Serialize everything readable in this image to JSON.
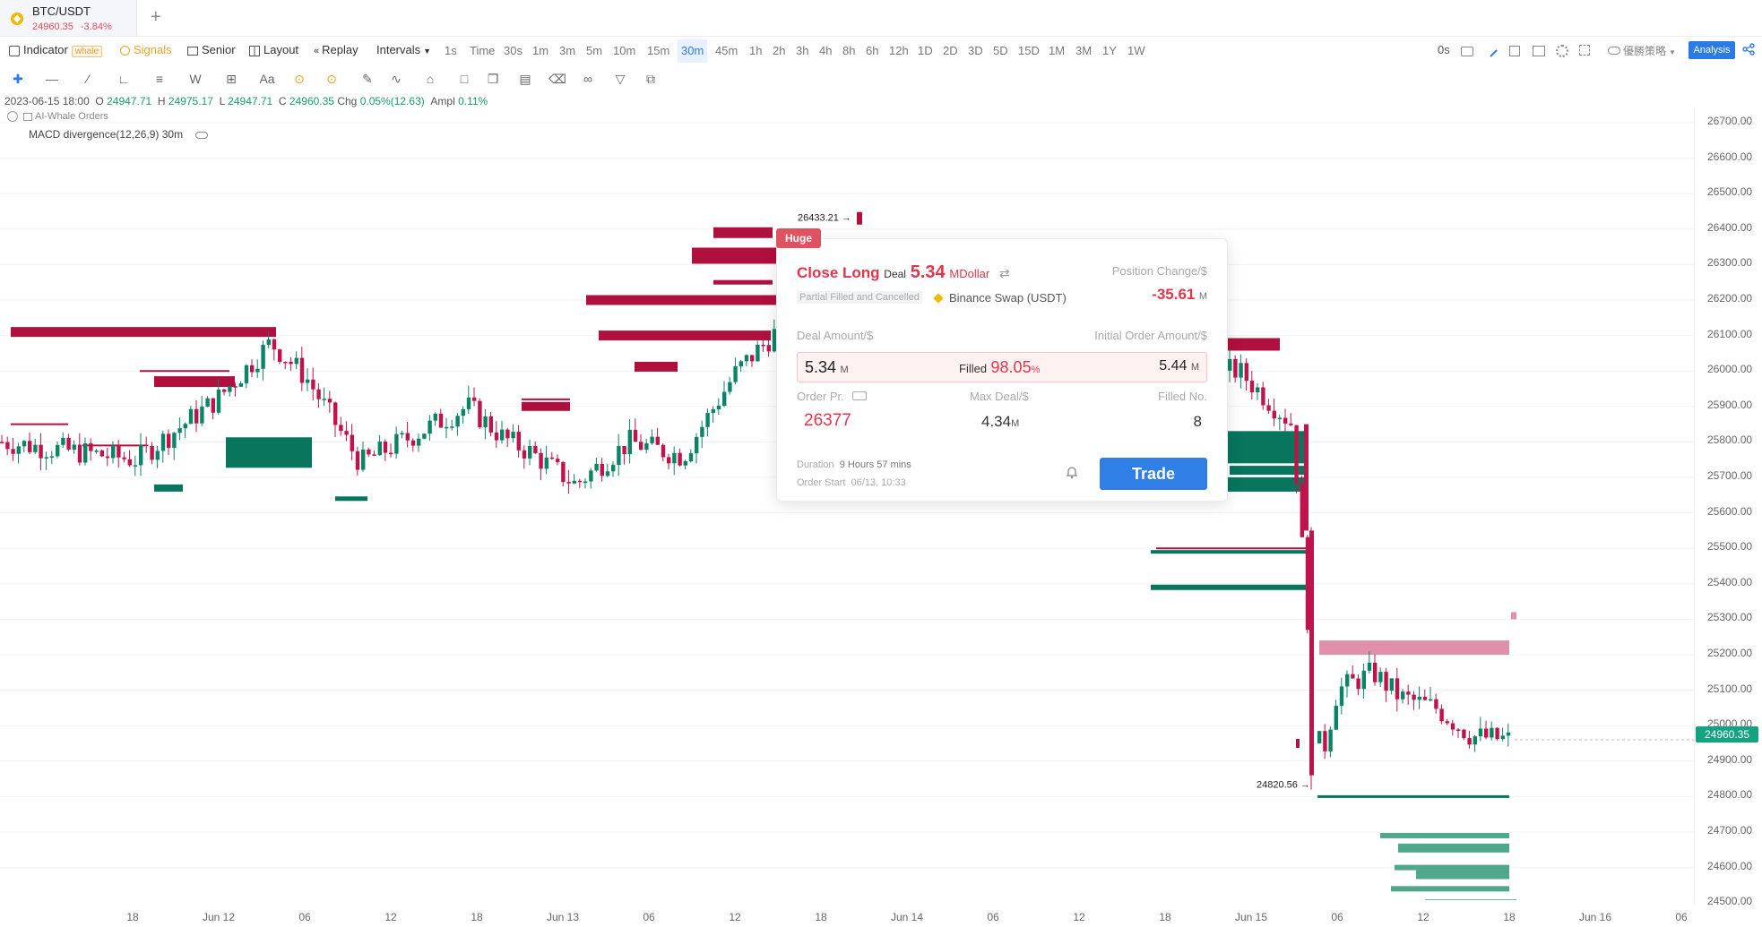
{
  "tab": {
    "symbol": "BTC/USDT",
    "price": "24960.35",
    "change": "-3.84%",
    "add_label": "+"
  },
  "toolbar": {
    "indicator": "Indicator",
    "whale_badge": "whale",
    "signals": "Signals",
    "senior": "Senior",
    "layout": "Layout",
    "replay": "Replay",
    "intervals": "Intervals",
    "interval_options": [
      "1s",
      "Time",
      "30s",
      "1m",
      "3m",
      "5m",
      "10m",
      "15m",
      "30m",
      "45m",
      "1h",
      "2h",
      "3h",
      "4h",
      "8h",
      "6h",
      "12h",
      "1D",
      "2D",
      "3D",
      "5D",
      "15D",
      "1M",
      "3M",
      "1Y",
      "1W"
    ],
    "selected_interval": "30m",
    "right_label": "0s",
    "strategy_label": "優勝策略",
    "analysis": "Analysis"
  },
  "drawing_tools": [
    "crosshair-icon",
    "line-icon",
    "fib-icon",
    "ruler-icon",
    "hline-icon",
    "wave-icon",
    "measure-icon",
    "text-icon",
    "magnet-icon",
    "magnet-lock-icon",
    "pencil-icon",
    "brush-icon",
    "pattern-icon",
    "lock-icon",
    "copy-icon",
    "note-icon",
    "trash-icon",
    "link-icon",
    "filter-icon",
    "layers-icon"
  ],
  "ohlc": {
    "date": "2023-06-15 18:00",
    "o_label": "O",
    "o": "24947.71",
    "h_label": "H",
    "h": "24975.17",
    "l_label": "L",
    "l": "24947.71",
    "c_label": "C",
    "c": "24960.35",
    "chg_label": "Chg",
    "chg": "0.05%(12.63)",
    "ampl_label": "Ampl",
    "ampl": "0.11%"
  },
  "indicators": {
    "whale": "AI-Whale Orders",
    "macd": "MACD divergence(12,26,9) 30m"
  },
  "price_axis": [
    "26700.00",
    "26600.00",
    "26500.00",
    "26400.00",
    "26300.00",
    "26200.00",
    "26100.00",
    "26000.00",
    "25900.00",
    "25800.00",
    "25700.00",
    "25600.00",
    "25500.00",
    "25400.00",
    "25300.00",
    "25200.00",
    "25100.00",
    "25000.00",
    "24900.00",
    "24800.00",
    "24700.00",
    "24600.00",
    "24500.00"
  ],
  "current_price": "24960.35",
  "time_axis": [
    "18",
    "Jun 12",
    "06",
    "12",
    "18",
    "Jun 13",
    "06",
    "12",
    "18",
    "Jun 14",
    "06",
    "12",
    "18",
    "Jun 15",
    "06",
    "12",
    "18",
    "Jun 16",
    "06"
  ],
  "annotations": {
    "high": "26433.21",
    "low": "24820.56"
  },
  "popup": {
    "badge": "Huge",
    "side": "Close Long",
    "deal_label": "Deal",
    "deal_value": "5.34",
    "deal_unit": "MDollar",
    "position_change_label": "Position Change/$",
    "position_change": "-35.61",
    "position_change_unit": "M",
    "status": "Partial Filled and Cancelled",
    "exchange": "Binance Swap (USDT)",
    "deal_amount_label": "Deal Amount/$",
    "initial_amount_label": "Initial Order Amount/$",
    "deal_amount": "5.34",
    "deal_amount_unit": "M",
    "filled_label": "Filled",
    "filled_pct": "98.05",
    "filled_pct_unit": "%",
    "initial_amount": "5.44",
    "initial_amount_unit": "M",
    "order_price_label": "Order Pr.",
    "max_deal_label": "Max Deal/$",
    "filled_no_label": "Filled No.",
    "order_price": "26377",
    "max_deal": "4.34",
    "max_deal_unit": "M",
    "filled_no": "8",
    "duration_label": "Duration",
    "duration": "9 Hours 57 mins",
    "order_start_label": "Order Start",
    "order_start": "06/13, 10:33",
    "trade_button": "Trade"
  },
  "colors": {
    "up": "#0a8466",
    "down": "#c0134b",
    "accent": "#2f7fe6",
    "sell_wall": "#b0103e",
    "buy_wall": "#07765c",
    "light_sell": "#e090aa",
    "light_buy": "#4fa88e"
  }
}
